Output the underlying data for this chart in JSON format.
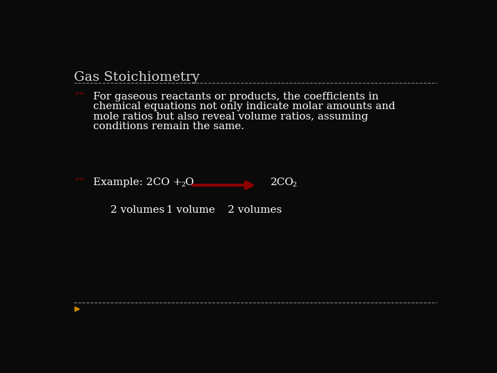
{
  "background_color": "#0a0a0a",
  "title": "Gas Stoichiometry",
  "title_color": "#d8d8d8",
  "title_fontsize": 14,
  "title_font": "serif",
  "separator_color": "#888888",
  "bullet_color": "#8b0000",
  "bullet_char": "““",
  "body_text_color": "#ffffff",
  "body_fontsize": 11,
  "body_font": "serif",
  "bullet1_text_line1": "For gaseous reactants or products, the coefficients in",
  "bullet1_text_line2": "chemical equations not only indicate molar amounts and",
  "bullet1_text_line3": "mole ratios but also reveal volume ratios, assuming",
  "bullet1_text_line4": "conditions remain the same.",
  "bullet2_prefix": "Example: 2CO + O",
  "bullet2_sub1": "2",
  "bullet2_product": "2CO",
  "bullet2_sub2": "2",
  "arrow_color": "#8b0000",
  "volumes_text1": "2 volumes",
  "volumes_text2": "1 volume",
  "volumes_text3": "2 volumes",
  "bottom_separator_color": "#888888",
  "bottom_arrow_color": "#cc8800"
}
